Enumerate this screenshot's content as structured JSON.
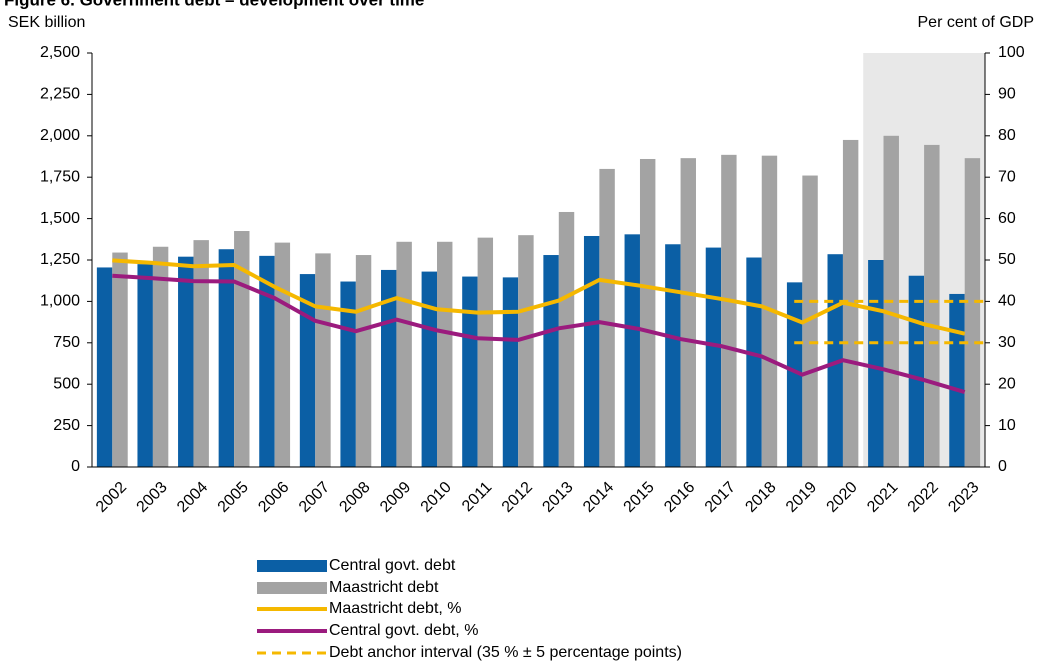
{
  "chart_data": {
    "type": "bar_line",
    "title": "Figure 6. Government debt – development over time",
    "y_label": "SEK billion",
    "y2_label": "Per cent of GDP",
    "categories": [
      "2002",
      "2003",
      "2004",
      "2005",
      "2006",
      "2007",
      "2008",
      "2009",
      "2010",
      "2011",
      "2012",
      "2013",
      "2014",
      "2015",
      "2016",
      "2017",
      "2018",
      "2019",
      "2020",
      "2021",
      "2022",
      "2023"
    ],
    "series": [
      {
        "name": "Central govt. debt",
        "color": "#0b5fa5",
        "kind": "bar",
        "values": [
          1205,
          1225,
          1270,
          1315,
          1275,
          1165,
          1120,
          1190,
          1180,
          1150,
          1145,
          1280,
          1395,
          1405,
          1345,
          1325,
          1265,
          1115,
          1285,
          1250,
          1155,
          1045
        ]
      },
      {
        "name": "Maastricht debt",
        "color": "#a3a3a3",
        "kind": "bar",
        "values": [
          1295,
          1330,
          1370,
          1425,
          1355,
          1290,
          1280,
          1360,
          1360,
          1385,
          1400,
          1540,
          1800,
          1860,
          1865,
          1885,
          1880,
          1760,
          1975,
          2000,
          1945,
          1865
        ]
      },
      {
        "name": "Maastricht debt, %",
        "color": "#f5b800",
        "kind": "line",
        "axis": "y2",
        "values": [
          49.9,
          49.3,
          48.5,
          48.8,
          43.5,
          38.8,
          37.5,
          40.8,
          38.1,
          37.3,
          37.5,
          40.2,
          45.2,
          43.8,
          42.2,
          40.6,
          38.8,
          34.9,
          39.7,
          37.6,
          34.5,
          32.2
        ]
      },
      {
        "name": "Central govt. debt, %",
        "color": "#9b1b7e",
        "kind": "line",
        "axis": "y2",
        "values": [
          46.2,
          45.6,
          44.9,
          44.8,
          40.8,
          35.3,
          32.8,
          35.6,
          33.0,
          31.1,
          30.7,
          33.5,
          35.0,
          33.3,
          30.9,
          29.2,
          26.7,
          22.3,
          25.8,
          23.6,
          21.0,
          18.1
        ]
      }
    ],
    "anchor": {
      "name": "Debt anchor interval (35 % ± 5 percentage points)",
      "color": "#f5b800",
      "upper": 40,
      "lower": 30,
      "start_category": "2019"
    },
    "forecast_start": "2021",
    "ylim": [
      0,
      2500
    ],
    "yticks": [
      0,
      250,
      500,
      750,
      {
        "value": 1000,
        "label": "1,000"
      },
      {
        "value": 1250,
        "label": "1,250"
      },
      {
        "value": 1500,
        "label": "1,500"
      },
      {
        "value": 1750,
        "label": "1,750"
      },
      {
        "value": 2000,
        "label": "2,000"
      },
      {
        "value": 2250,
        "label": "2,250"
      },
      {
        "value": 2500,
        "label": "2,500"
      }
    ],
    "y2lim": [
      0,
      100
    ],
    "y2ticks": [
      0,
      10,
      20,
      30,
      40,
      50,
      60,
      70,
      80,
      90,
      100
    ]
  }
}
